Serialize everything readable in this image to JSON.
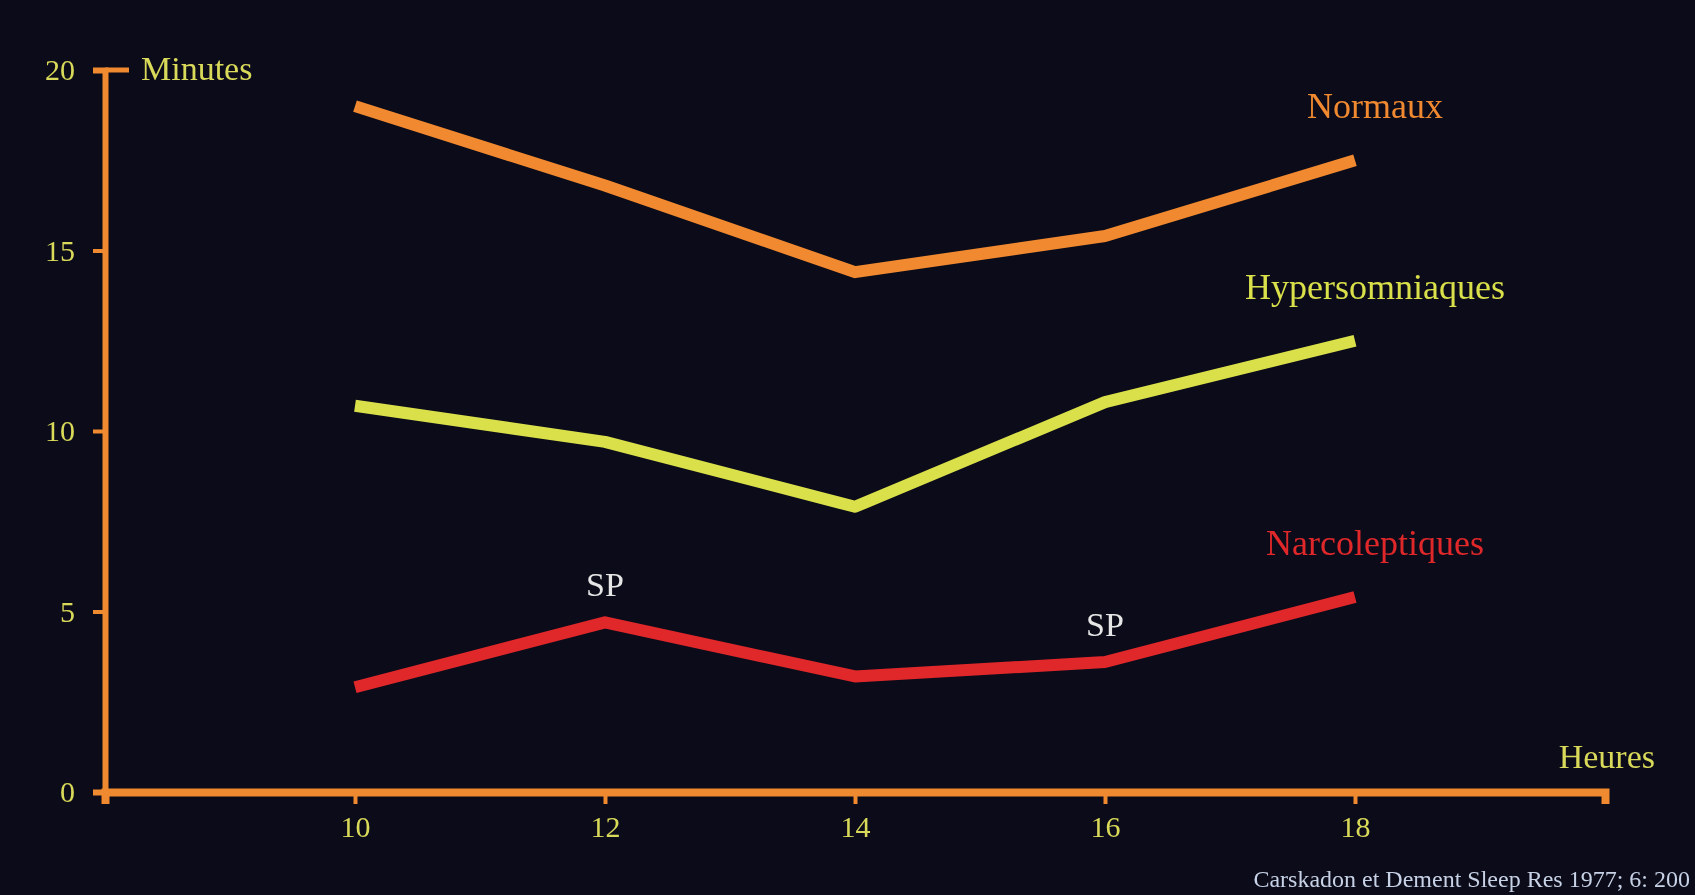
{
  "chart_data": {
    "type": "line",
    "xlabel": "Heures",
    "ylabel": "Minutes",
    "x": [
      10,
      12,
      14,
      16,
      18
    ],
    "xlim": [
      8,
      20
    ],
    "xticks": [
      10,
      12,
      14,
      16,
      18
    ],
    "ylim": [
      0,
      20
    ],
    "yticks": [
      0,
      5,
      10,
      15,
      20
    ],
    "grid": false,
    "marker": "none",
    "line_style": "solid",
    "series": [
      {
        "name": "Normaux",
        "color": "#f0892f",
        "values": [
          19,
          16.8,
          14.4,
          15.4,
          17.5
        ]
      },
      {
        "name": "Hypersomniaques",
        "color": "#d9e04a",
        "values": [
          10.7,
          9.7,
          7.9,
          10.8,
          12.5
        ]
      },
      {
        "name": "Narcoleptiques",
        "color": "#e0282a",
        "values": [
          2.9,
          4.7,
          3.2,
          3.6,
          5.4
        ]
      }
    ],
    "annotations": [
      {
        "text": "SP",
        "x": 12,
        "y": 4.7
      },
      {
        "text": "SP",
        "x": 16,
        "y": 3.6
      },
      "Carskadon et Dement Sleep Res 1977; 6: 200"
    ]
  }
}
